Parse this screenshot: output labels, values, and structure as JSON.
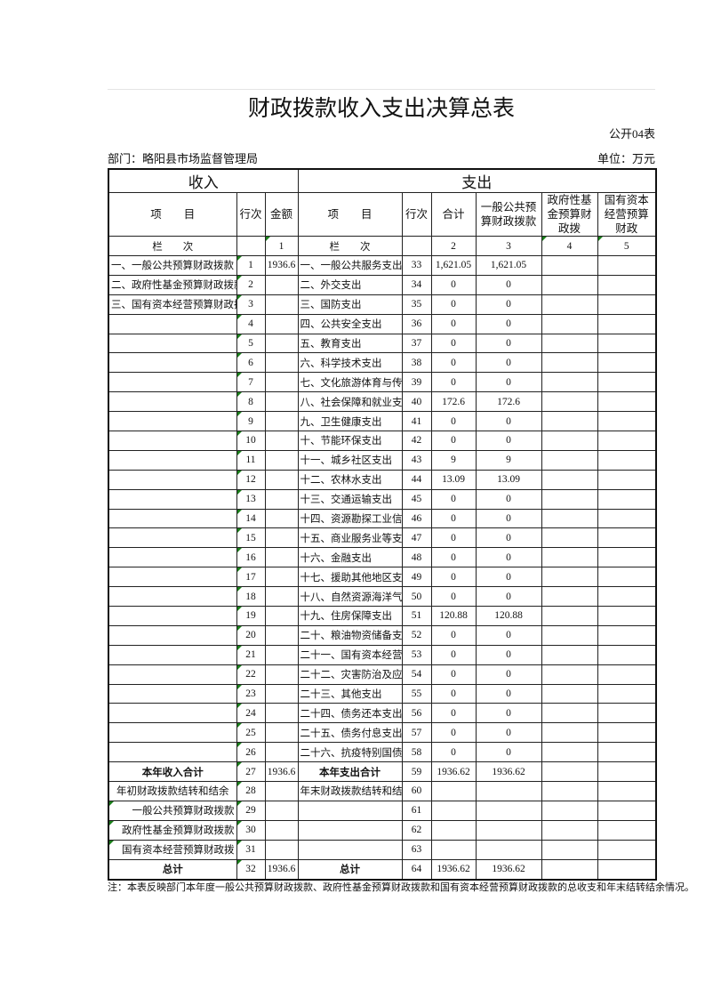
{
  "title": "财政拨款收入支出决算总表",
  "form_no": "公开04表",
  "department": "部门：略阳县市场监督管理局",
  "unit": "单位：万元",
  "headers": {
    "income": "收入",
    "expense": "支出",
    "item": "项　　目",
    "line": "行次",
    "amount": "金额",
    "total": "合计",
    "general": "一般公共预算财政拨款",
    "gov_fund": "政府性基金预算财政拨",
    "soe": "国有资本经营预算财政",
    "col_label": "栏　　次",
    "c1": "1",
    "c2": "2",
    "c3": "3",
    "c4": "4",
    "c5": "5"
  },
  "rows": [
    {
      "in_item": "一、一般公共预算财政拨款",
      "in_line": "1",
      "in_amt": "1936.6",
      "ex_item": "一、一般公共服务支出",
      "ex_line": "33",
      "total": "1,621.05",
      "general": "1,621.05",
      "gov_fund": "",
      "soe": ""
    },
    {
      "in_item": "二、政府性基金预算财政拨款",
      "in_line": "2",
      "in_amt": "",
      "ex_item": "二、外交支出",
      "ex_line": "34",
      "total": "0",
      "general": "0",
      "gov_fund": "",
      "soe": ""
    },
    {
      "in_item": "三、国有资本经营预算财政拨款",
      "in_line": "3",
      "in_amt": "",
      "ex_item": "三、国防支出",
      "ex_line": "35",
      "total": "0",
      "general": "0",
      "gov_fund": "",
      "soe": ""
    },
    {
      "in_item": "",
      "in_line": "4",
      "in_amt": "",
      "ex_item": "四、公共安全支出",
      "ex_line": "36",
      "total": "0",
      "general": "0",
      "gov_fund": "",
      "soe": ""
    },
    {
      "in_item": "",
      "in_line": "5",
      "in_amt": "",
      "ex_item": "五、教育支出",
      "ex_line": "37",
      "total": "0",
      "general": "0",
      "gov_fund": "",
      "soe": ""
    },
    {
      "in_item": "",
      "in_line": "6",
      "in_amt": "",
      "ex_item": "六、科学技术支出",
      "ex_line": "38",
      "total": "0",
      "general": "0",
      "gov_fund": "",
      "soe": ""
    },
    {
      "in_item": "",
      "in_line": "7",
      "in_amt": "",
      "ex_item": "七、文化旅游体育与传媒支出",
      "ex_line": "39",
      "total": "0",
      "general": "0",
      "gov_fund": "",
      "soe": ""
    },
    {
      "in_item": "",
      "in_line": "8",
      "in_amt": "",
      "ex_item": "八、社会保障和就业支出",
      "ex_line": "40",
      "total": "172.6",
      "general": "172.6",
      "gov_fund": "",
      "soe": ""
    },
    {
      "in_item": "",
      "in_line": "9",
      "in_amt": "",
      "ex_item": "九、卫生健康支出",
      "ex_line": "41",
      "total": "0",
      "general": "0",
      "gov_fund": "",
      "soe": ""
    },
    {
      "in_item": "",
      "in_line": "10",
      "in_amt": "",
      "ex_item": "十、节能环保支出",
      "ex_line": "42",
      "total": "0",
      "general": "0",
      "gov_fund": "",
      "soe": ""
    },
    {
      "in_item": "",
      "in_line": "11",
      "in_amt": "",
      "ex_item": "十一、城乡社区支出",
      "ex_line": "43",
      "total": "9",
      "general": "9",
      "gov_fund": "",
      "soe": ""
    },
    {
      "in_item": "",
      "in_line": "12",
      "in_amt": "",
      "ex_item": "十二、农林水支出",
      "ex_line": "44",
      "total": "13.09",
      "general": "13.09",
      "gov_fund": "",
      "soe": ""
    },
    {
      "in_item": "",
      "in_line": "13",
      "in_amt": "",
      "ex_item": "十三、交通运输支出",
      "ex_line": "45",
      "total": "0",
      "general": "0",
      "gov_fund": "",
      "soe": ""
    },
    {
      "in_item": "",
      "in_line": "14",
      "in_amt": "",
      "ex_item": "十四、资源勘探工业信息等支出",
      "ex_line": "46",
      "total": "0",
      "general": "0",
      "gov_fund": "",
      "soe": ""
    },
    {
      "in_item": "",
      "in_line": "15",
      "in_amt": "",
      "ex_item": "十五、商业服务业等支出",
      "ex_line": "47",
      "total": "0",
      "general": "0",
      "gov_fund": "",
      "soe": ""
    },
    {
      "in_item": "",
      "in_line": "16",
      "in_amt": "",
      "ex_item": "十六、金融支出",
      "ex_line": "48",
      "total": "0",
      "general": "0",
      "gov_fund": "",
      "soe": ""
    },
    {
      "in_item": "",
      "in_line": "17",
      "in_amt": "",
      "ex_item": "十七、援助其他地区支出",
      "ex_line": "49",
      "total": "0",
      "general": "0",
      "gov_fund": "",
      "soe": ""
    },
    {
      "in_item": "",
      "in_line": "18",
      "in_amt": "",
      "ex_item": "十八、自然资源海洋气象等支出",
      "ex_line": "50",
      "total": "0",
      "general": "0",
      "gov_fund": "",
      "soe": ""
    },
    {
      "in_item": "",
      "in_line": "19",
      "in_amt": "",
      "ex_item": "十九、住房保障支出",
      "ex_line": "51",
      "total": "120.88",
      "general": "120.88",
      "gov_fund": "",
      "soe": ""
    },
    {
      "in_item": "",
      "in_line": "20",
      "in_amt": "",
      "ex_item": "二十、粮油物资储备支出",
      "ex_line": "52",
      "total": "0",
      "general": "0",
      "gov_fund": "",
      "soe": ""
    },
    {
      "in_item": "",
      "in_line": "21",
      "in_amt": "",
      "ex_item": "二十一、国有资本经营预算支出",
      "ex_line": "53",
      "total": "0",
      "general": "0",
      "gov_fund": "",
      "soe": ""
    },
    {
      "in_item": "",
      "in_line": "22",
      "in_amt": "",
      "ex_item": "二十二、灾害防治及应急管理支出",
      "ex_line": "54",
      "total": "0",
      "general": "0",
      "gov_fund": "",
      "soe": ""
    },
    {
      "in_item": "",
      "in_line": "23",
      "in_amt": "",
      "ex_item": "二十三、其他支出",
      "ex_line": "55",
      "total": "0",
      "general": "0",
      "gov_fund": "",
      "soe": ""
    },
    {
      "in_item": "",
      "in_line": "24",
      "in_amt": "",
      "ex_item": "二十四、债务还本支出",
      "ex_line": "56",
      "total": "0",
      "general": "0",
      "gov_fund": "",
      "soe": ""
    },
    {
      "in_item": "",
      "in_line": "25",
      "in_amt": "",
      "ex_item": "二十五、债务付息支出",
      "ex_line": "57",
      "total": "0",
      "general": "0",
      "gov_fund": "",
      "soe": ""
    },
    {
      "in_item": "",
      "in_line": "26",
      "in_amt": "",
      "ex_item": "二十六、抗疫特别国债安排的支出",
      "ex_line": "58",
      "total": "0",
      "general": "0",
      "gov_fund": "",
      "soe": ""
    },
    {
      "in_item": "本年收入合计",
      "in_line": "27",
      "in_amt": "1936.6",
      "ex_item": "本年支出合计",
      "ex_line": "59",
      "total": "1936.62",
      "general": "1936.62",
      "gov_fund": "",
      "soe": ""
    },
    {
      "in_item": "年初财政拨款结转和结余",
      "in_line": "28",
      "in_amt": "",
      "ex_item": "年末财政拨款结转和结余",
      "ex_line": "60",
      "total": "",
      "general": "",
      "gov_fund": "",
      "soe": ""
    },
    {
      "in_item": "一般公共预算财政拨款",
      "in_line": "29",
      "in_amt": "",
      "ex_item": "",
      "ex_line": "61",
      "total": "",
      "general": "",
      "gov_fund": "",
      "soe": ""
    },
    {
      "in_item": "政府性基金预算财政拨款",
      "in_line": "30",
      "in_amt": "",
      "ex_item": "",
      "ex_line": "62",
      "total": "",
      "general": "",
      "gov_fund": "",
      "soe": ""
    },
    {
      "in_item": "国有资本经营预算财政拨",
      "in_line": "31",
      "in_amt": "",
      "ex_item": "",
      "ex_line": "63",
      "total": "",
      "general": "",
      "gov_fund": "",
      "soe": ""
    },
    {
      "in_item": "总计",
      "in_line": "32",
      "in_amt": "1936.6",
      "ex_item": "总计",
      "ex_line": "64",
      "total": "1936.62",
      "general": "1936.62",
      "gov_fund": "",
      "soe": ""
    }
  ],
  "note": "注：本表反映部门本年度一般公共预算财政拨款、政府性基金预算财政拨款和国有资本经营预算财政拨款的总收支和年末结转结余情况。"
}
